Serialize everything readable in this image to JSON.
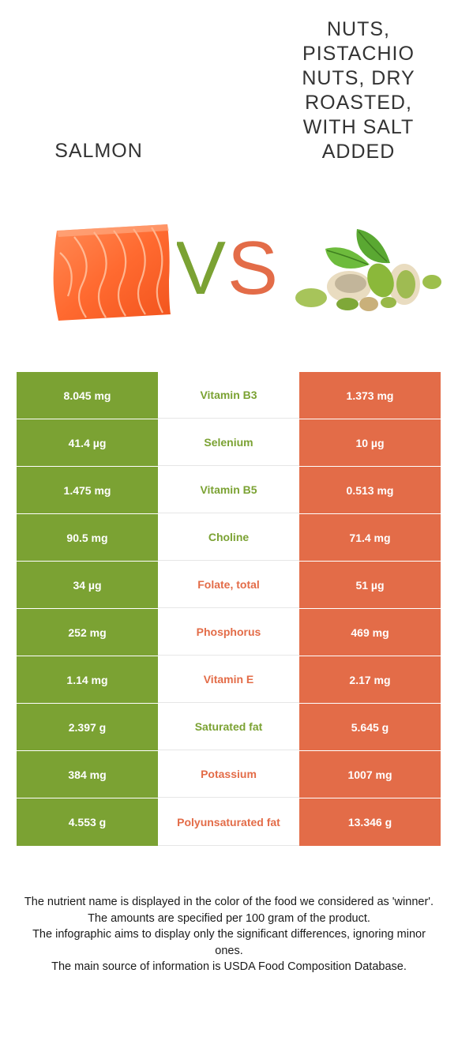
{
  "left_food": {
    "name": "Salmon"
  },
  "right_food": {
    "name": "Nuts, pistachio nuts, dry roasted, with salt added"
  },
  "vs_text": {
    "v": "V",
    "s": "S"
  },
  "colors": {
    "left": "#7ba233",
    "right": "#e36c48"
  },
  "rows": [
    {
      "nutrient": "Vitamin B3",
      "left": "8.045 mg",
      "right": "1.373 mg",
      "winner": "left"
    },
    {
      "nutrient": "Selenium",
      "left": "41.4 µg",
      "right": "10 µg",
      "winner": "left"
    },
    {
      "nutrient": "Vitamin B5",
      "left": "1.475 mg",
      "right": "0.513 mg",
      "winner": "left"
    },
    {
      "nutrient": "Choline",
      "left": "90.5 mg",
      "right": "71.4 mg",
      "winner": "left"
    },
    {
      "nutrient": "Folate, total",
      "left": "34 µg",
      "right": "51 µg",
      "winner": "right"
    },
    {
      "nutrient": "Phosphorus",
      "left": "252 mg",
      "right": "469 mg",
      "winner": "right"
    },
    {
      "nutrient": "Vitamin E",
      "left": "1.14 mg",
      "right": "2.17 mg",
      "winner": "right"
    },
    {
      "nutrient": "Saturated fat",
      "left": "2.397 g",
      "right": "5.645 g",
      "winner": "left"
    },
    {
      "nutrient": "Potassium",
      "left": "384 mg",
      "right": "1007 mg",
      "winner": "right"
    },
    {
      "nutrient": "Polyunsaturated fat",
      "left": "4.553 g",
      "right": "13.346 g",
      "winner": "right"
    }
  ],
  "footer": {
    "lines": [
      "The nutrient name is displayed in the color of the food we considered as 'winner'.",
      "The amounts are specified per 100 gram of the product.",
      "The infographic aims to display only the significant differences, ignoring minor ones.",
      "The main source of information is USDA Food Composition Database."
    ]
  }
}
